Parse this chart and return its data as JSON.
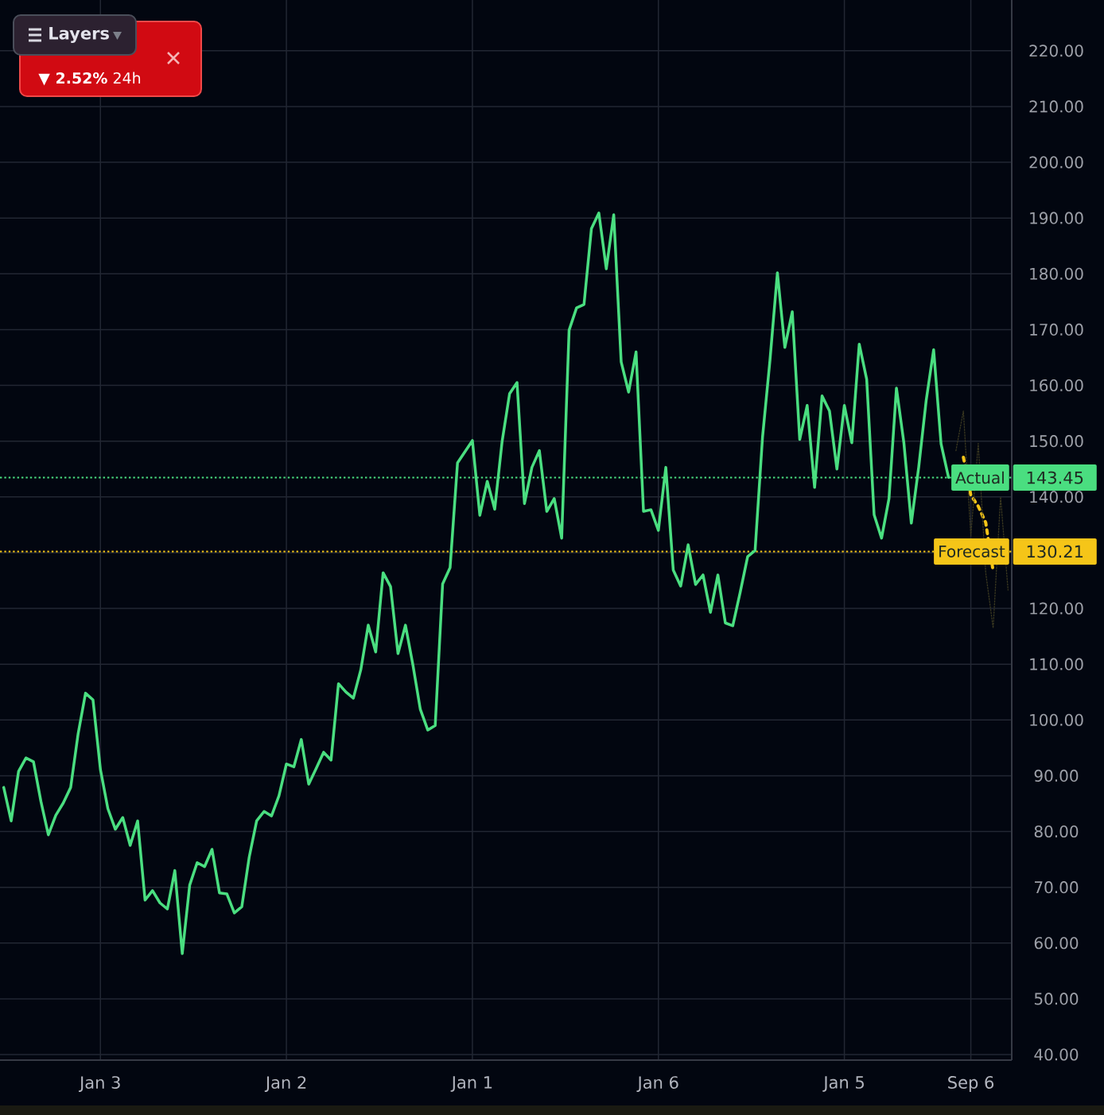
{
  "chart_data": {
    "type": "line",
    "annotations": [
      "Layers",
      "**▼ 2.52%** 24h",
      "143.45",
      "130.21"
    ],
    "categories": [
      null,
      null,
      null,
      null,
      null,
      null,
      null,
      null,
      null,
      null,
      null,
      null,
      null,
      "Jan 3",
      null,
      null,
      null,
      null,
      null,
      null,
      null,
      null,
      null,
      null,
      null,
      null,
      null,
      null,
      null,
      null,
      null,
      null,
      null,
      null,
      null,
      null,
      null,
      null,
      "Jan 2",
      null,
      null,
      null,
      null,
      null,
      null,
      null,
      null,
      null,
      null,
      null,
      null,
      null,
      null,
      null,
      null,
      null,
      null,
      null,
      null,
      null,
      null,
      null,
      null,
      "Jan 1",
      null,
      null,
      null,
      null,
      null,
      null,
      null,
      null,
      null,
      null,
      null,
      null,
      null,
      null,
      null,
      null,
      null,
      null,
      null,
      null,
      null,
      null,
      null,
      null,
      "Jan 6",
      null,
      null,
      null,
      null,
      null,
      null,
      null,
      null,
      null,
      null,
      null,
      null,
      null,
      null,
      null,
      null,
      null,
      null,
      null,
      null,
      null,
      null,
      null,
      null,
      "Jan 5",
      null,
      null,
      null,
      null,
      null,
      null,
      null,
      null,
      null,
      null,
      null,
      null,
      null,
      null,
      null,
      null,
      "Sep 6",
      null,
      null,
      null,
      null,
      null
    ],
    "ylim": [
      39,
      229.1
    ],
    "yticks": [
      {
        "value": 40,
        "label": "40.00"
      },
      {
        "value": 50,
        "label": "50.00"
      },
      {
        "value": 60,
        "label": "60.00"
      },
      {
        "value": 70,
        "label": "70.00"
      },
      {
        "value": 80,
        "label": "80.00"
      },
      {
        "value": 90,
        "label": "90.00"
      },
      {
        "value": 100,
        "label": "100.00"
      },
      {
        "value": 110,
        "label": "110.00"
      },
      {
        "value": 120,
        "label": "120.00"
      },
      {
        "value": 130,
        "label": null
      },
      {
        "value": 140,
        "label": "140.00"
      },
      {
        "value": 150,
        "label": "150.00"
      },
      {
        "value": 160,
        "label": "160.00"
      },
      {
        "value": 170,
        "label": "170.00"
      },
      {
        "value": 180,
        "label": "180.00"
      },
      {
        "value": 190,
        "label": "190.00"
      },
      {
        "value": 200,
        "label": "200.00"
      },
      {
        "value": 210,
        "label": "210.00"
      },
      {
        "value": 220,
        "label": "220.00"
      }
    ],
    "grid": true,
    "ref_lines": [
      {
        "axis": "y",
        "value": 143.45,
        "label": "Actual",
        "color": "#4ade80",
        "line_style": "dotted"
      },
      {
        "axis": "y",
        "value": 130.21,
        "label": "Forecast",
        "color": "#f5c518",
        "line_style": "dotted"
      }
    ],
    "series": [
      {
        "color": "#4ade80",
        "line_style": "solid",
        "values": [
          87.9,
          81.9,
          90.8,
          93.2,
          92.5,
          85.4,
          79.4,
          82.9,
          85.1,
          87.9,
          97.5,
          104.8,
          103.6,
          91.1,
          84.1,
          80.4,
          82.5,
          77.5,
          81.9,
          67.7,
          69.4,
          67.2,
          66.1,
          73.0,
          58.1,
          70.4,
          74.4,
          73.7,
          76.8,
          69.0,
          68.8,
          65.4,
          66.5,
          75.4,
          81.9,
          83.6,
          82.8,
          86.4,
          92.1,
          91.6,
          96.5,
          88.5,
          91.3,
          94.2,
          92.8,
          106.5,
          105.0,
          103.9,
          109.0,
          117.0,
          112.2,
          126.4,
          123.9,
          111.9,
          117.0,
          109.9,
          101.9,
          98.2,
          99.0,
          124.4,
          127.3,
          146.1,
          148.1,
          150.1,
          136.7,
          142.8,
          137.8,
          150.0,
          158.5,
          160.5,
          138.8,
          145.3,
          148.3,
          137.4,
          139.7,
          132.6,
          169.9,
          173.9,
          174.5,
          188.1,
          190.9,
          180.9,
          190.6,
          164.2,
          158.8,
          166.0,
          137.4,
          137.7,
          134.0,
          145.3,
          126.9,
          124.0,
          131.4,
          124.3,
          126.0,
          119.3,
          126.0,
          117.4,
          116.9,
          122.9,
          129.3,
          130.4,
          150.7,
          164.5,
          180.2,
          166.8,
          173.2,
          150.3,
          156.4,
          141.7,
          158.1,
          155.4,
          145.0,
          156.4,
          149.7,
          167.4,
          161.1,
          136.8,
          132.6,
          139.7,
          159.5,
          149.7,
          135.3,
          145.4,
          157.3,
          166.4,
          149.5,
          143.5,
          null,
          null,
          null,
          null,
          null,
          null,
          null,
          null
        ]
      },
      {
        "color": "#f5c518",
        "line_style": "dotted",
        "values": [
          null,
          null,
          null,
          null,
          null,
          null,
          null,
          null,
          null,
          null,
          null,
          null,
          null,
          null,
          null,
          null,
          null,
          null,
          null,
          null,
          null,
          null,
          null,
          null,
          null,
          null,
          null,
          null,
          null,
          null,
          null,
          null,
          null,
          null,
          null,
          null,
          null,
          null,
          null,
          null,
          null,
          null,
          null,
          null,
          null,
          null,
          null,
          null,
          null,
          null,
          null,
          null,
          null,
          null,
          null,
          null,
          null,
          null,
          null,
          null,
          null,
          null,
          null,
          null,
          null,
          null,
          null,
          null,
          null,
          null,
          null,
          null,
          null,
          null,
          null,
          null,
          null,
          null,
          null,
          null,
          null,
          null,
          null,
          null,
          null,
          null,
          null,
          null,
          null,
          null,
          null,
          null,
          null,
          null,
          null,
          null,
          null,
          null,
          null,
          null,
          null,
          null,
          null,
          null,
          null,
          null,
          null,
          null,
          null,
          null,
          null,
          null,
          null,
          null,
          null,
          null,
          null,
          null,
          null,
          null,
          null,
          null,
          null,
          null,
          null,
          null,
          null,
          null,
          null,
          147.1,
          140.3,
          138.3,
          135.4,
          126.7,
          null,
          null
        ]
      },
      {
        "color": "#3a3820",
        "line_style": "dotted",
        "values": [
          null,
          null,
          null,
          null,
          null,
          null,
          null,
          null,
          null,
          null,
          null,
          null,
          null,
          null,
          null,
          null,
          null,
          null,
          null,
          null,
          null,
          null,
          null,
          null,
          null,
          null,
          null,
          null,
          null,
          null,
          null,
          null,
          null,
          null,
          null,
          null,
          null,
          null,
          null,
          null,
          null,
          null,
          null,
          null,
          null,
          null,
          null,
          null,
          null,
          null,
          null,
          null,
          null,
          null,
          null,
          null,
          null,
          null,
          null,
          null,
          null,
          null,
          null,
          null,
          null,
          null,
          null,
          null,
          null,
          null,
          null,
          null,
          null,
          null,
          null,
          null,
          null,
          null,
          null,
          null,
          null,
          null,
          null,
          null,
          null,
          null,
          null,
          null,
          null,
          null,
          null,
          null,
          null,
          null,
          null,
          null,
          null,
          null,
          null,
          null,
          null,
          null,
          null,
          null,
          null,
          null,
          null,
          null,
          null,
          null,
          null,
          null,
          null,
          null,
          null,
          null,
          null,
          null,
          null,
          null,
          null,
          null,
          null,
          null,
          null,
          null,
          null,
          null,
          148.3,
          155.4,
          133.1,
          149.6,
          126.4,
          116.5,
          140.0,
          123.3
        ]
      }
    ]
  }
}
